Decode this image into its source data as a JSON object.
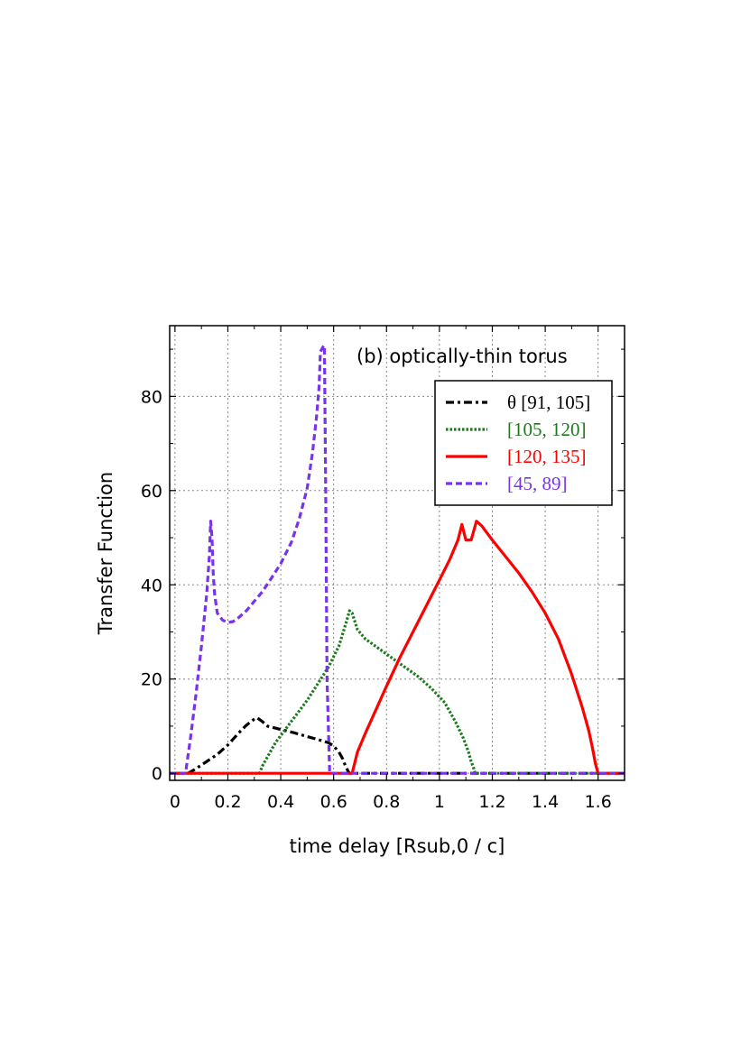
{
  "chart_data": {
    "type": "line",
    "title": "",
    "annotation": "(b) optically-thin torus",
    "xlabel": "time delay [Rsub,0 / c]",
    "ylabel": "Transfer Function",
    "xlim": [
      -0.02,
      1.7
    ],
    "ylim": [
      -1.5,
      95
    ],
    "xticks": [
      0,
      0.2,
      0.4,
      0.6,
      0.8,
      1,
      1.2,
      1.4,
      1.6
    ],
    "xtick_labels": [
      "0",
      "0.2",
      "0.4",
      "0.6",
      "0.8",
      "1",
      "1.2",
      "1.4",
      "1.6"
    ],
    "yticks": [
      0,
      20,
      40,
      60,
      80
    ],
    "ytick_labels": [
      "0",
      "20",
      "40",
      "60",
      "80"
    ],
    "grid": true,
    "legend_position": "top-right",
    "series": [
      {
        "name": "θ [91, 105]",
        "color": "#000000",
        "dash": "dash-dot",
        "x": [
          -0.02,
          0.05,
          0.08,
          0.12,
          0.16,
          0.2,
          0.24,
          0.27,
          0.3,
          0.31,
          0.33,
          0.35,
          0.4,
          0.45,
          0.5,
          0.55,
          0.58,
          0.6,
          0.62,
          0.635,
          0.645,
          0.655,
          0.66,
          1.7
        ],
        "y": [
          0,
          0,
          1.0,
          2.5,
          4.0,
          6.0,
          8.5,
          10.2,
          11.5,
          11.8,
          11.0,
          10.0,
          9.3,
          8.6,
          7.8,
          7.0,
          6.5,
          5.8,
          4.5,
          3.0,
          1.5,
          0.4,
          0,
          0
        ]
      },
      {
        "name": "[105, 120]",
        "color": "#1b7a1b",
        "dash": "dotted",
        "x": [
          -0.02,
          0.32,
          0.33,
          0.35,
          0.38,
          0.42,
          0.46,
          0.5,
          0.54,
          0.58,
          0.62,
          0.65,
          0.66,
          0.67,
          0.69,
          0.72,
          0.77,
          0.82,
          0.87,
          0.92,
          0.97,
          1.02,
          1.06,
          1.09,
          1.11,
          1.12,
          1.13,
          1.135,
          1.7
        ],
        "y": [
          0,
          0,
          1.5,
          3.5,
          6.5,
          9.5,
          12.5,
          15.5,
          19.0,
          22.5,
          27.0,
          32.5,
          34.5,
          34.0,
          30.5,
          28.5,
          26.5,
          24.5,
          22.5,
          20.5,
          18.0,
          15.0,
          11.0,
          7.5,
          4.5,
          2.5,
          1.0,
          0,
          0
        ]
      },
      {
        "name": "[120, 135]",
        "color": "#ff0000",
        "dash": "solid",
        "x": [
          -0.02,
          0.67,
          0.69,
          0.72,
          0.76,
          0.8,
          0.85,
          0.9,
          0.95,
          1.0,
          1.04,
          1.07,
          1.085,
          1.1,
          1.12,
          1.14,
          1.16,
          1.2,
          1.25,
          1.3,
          1.35,
          1.4,
          1.45,
          1.5,
          1.54,
          1.565,
          1.58,
          1.59,
          1.6,
          1.7
        ],
        "y": [
          0,
          0,
          4.5,
          8.5,
          13.5,
          18.5,
          24.5,
          30.0,
          35.5,
          41.0,
          45.5,
          49.5,
          52.8,
          49.5,
          49.5,
          53.5,
          52.5,
          49.5,
          46.0,
          42.5,
          38.5,
          34.0,
          28.5,
          21.0,
          14.0,
          9.0,
          5.0,
          2.0,
          0,
          0
        ]
      },
      {
        "name": "[45, 89]",
        "color": "#7733ee",
        "dash": "dashed",
        "x": [
          -0.02,
          0.04,
          0.06,
          0.08,
          0.1,
          0.12,
          0.13,
          0.135,
          0.14,
          0.145,
          0.15,
          0.16,
          0.18,
          0.2,
          0.22,
          0.24,
          0.27,
          0.3,
          0.33,
          0.36,
          0.4,
          0.44,
          0.47,
          0.5,
          0.52,
          0.535,
          0.545,
          0.55,
          0.56,
          0.565,
          0.57,
          0.575,
          0.585,
          1.7
        ],
        "y": [
          0,
          0,
          8.0,
          17.0,
          27.0,
          38.0,
          46.0,
          53.5,
          50.0,
          42.0,
          38.0,
          34.0,
          32.5,
          32.0,
          32.2,
          33.0,
          34.5,
          36.5,
          38.5,
          41.0,
          44.5,
          49.0,
          54.0,
          60.5,
          68.0,
          75.5,
          82.0,
          89.5,
          90.5,
          90.8,
          60.0,
          20.0,
          0,
          0
        ]
      }
    ]
  }
}
